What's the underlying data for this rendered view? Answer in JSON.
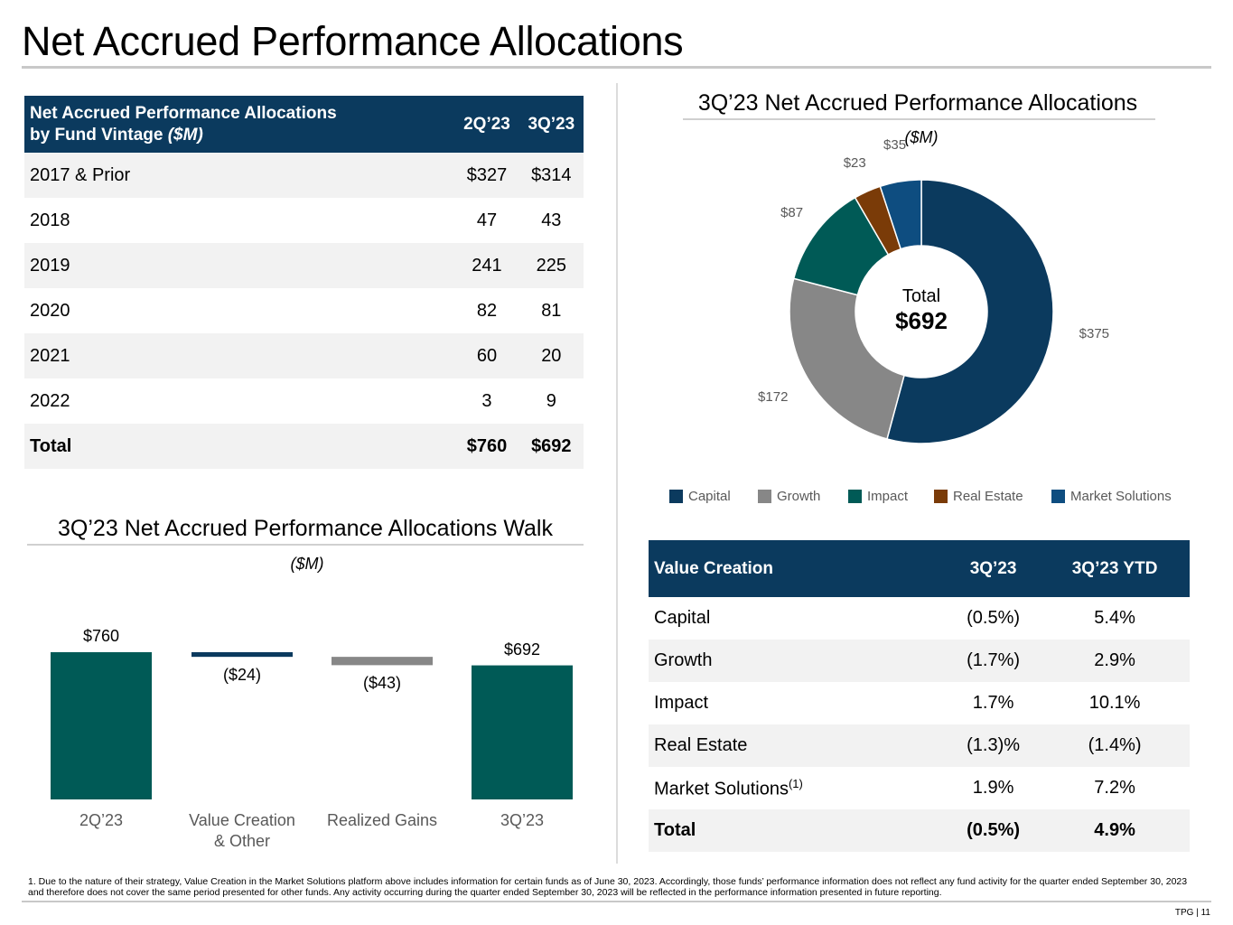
{
  "page": {
    "title": "Net Accrued Performance Allocations",
    "footnote": "1. Due to the nature of their strategy, Value Creation in the Market Solutions platform above includes information for certain funds as of June 30, 2023. Accordingly, those funds’ performance information does not reflect any fund activity for the quarter ended September 30, 2023 and therefore does not cover the same period presented for other funds. Any activity occurring during the quarter ended September 30, 2023 will be reflected in the performance information presented in future reporting.",
    "page_number": "TPG | 11"
  },
  "vintage_table": {
    "header_line1": "Net Accrued Performance Allocations",
    "header_line2": "by Fund Vintage ",
    "header_unit": "($M)",
    "col1": "2Q’23",
    "col2": "3Q’23",
    "rows": [
      {
        "label": "2017 & Prior",
        "q2": "$327",
        "q3": "$314"
      },
      {
        "label": "2018",
        "q2": "47",
        "q3": "43"
      },
      {
        "label": "2019",
        "q2": "241",
        "q3": "225"
      },
      {
        "label": "2020",
        "q2": "82",
        "q3": "81"
      },
      {
        "label": "2021",
        "q2": "60",
        "q3": "20"
      },
      {
        "label": "2022",
        "q2": "3",
        "q3": "9"
      }
    ],
    "total": {
      "label": "Total",
      "q2": "$760",
      "q3": "$692"
    }
  },
  "donut": {
    "title": "3Q’23 Net Accrued Performance Allocations",
    "unit": "($M)",
    "center_label": "Total",
    "center_value": "$692"
  },
  "walk": {
    "title": "3Q’23 Net Accrued Performance Allocations Walk",
    "unit": "($M)"
  },
  "value_creation": {
    "header": "Value Creation",
    "col1": "3Q’23",
    "col2": "3Q’23 YTD",
    "rows": [
      {
        "label": "Capital",
        "sup": "",
        "q3": "(0.5%)",
        "ytd": "5.4%"
      },
      {
        "label": "Growth",
        "sup": "",
        "q3": "(1.7%)",
        "ytd": "2.9%"
      },
      {
        "label": "Impact",
        "sup": "",
        "q3": "1.7%",
        "ytd": "10.1%"
      },
      {
        "label": "Real Estate",
        "sup": "",
        "q3": "(1.3)%",
        "ytd": "(1.4%)"
      },
      {
        "label": "Market Solutions",
        "sup": "(1)",
        "q3": "1.9%",
        "ytd": "7.2%"
      }
    ],
    "total": {
      "label": "Total",
      "q3": "(0.5%)",
      "ytd": "4.9%"
    }
  },
  "chart_data": [
    {
      "type": "pie",
      "title": "3Q’23 Net Accrued Performance Allocations",
      "subtitle": "($M)",
      "categories": [
        "Capital",
        "Growth",
        "Impact",
        "Real Estate",
        "Market Solutions"
      ],
      "values": [
        375,
        172,
        87,
        23,
        35
      ],
      "data_labels": [
        "$375",
        "$172",
        "$87",
        "$23",
        "$35"
      ],
      "colors": [
        "#0b3a5e",
        "#878787",
        "#005a56",
        "#7a3b08",
        "#0e4d80"
      ],
      "legend_position": "bottom",
      "center_text": [
        "Total",
        "$692"
      ]
    },
    {
      "type": "bar",
      "title": "3Q’23 Net Accrued Performance Allocations Walk",
      "subtitle": "($M)",
      "categories": [
        "2Q’23",
        "Value Creation & Other",
        "Realized Gains",
        "3Q’23"
      ],
      "category_lines": [
        [
          "2Q’23"
        ],
        [
          "Value Creation",
          "& Other"
        ],
        [
          "Realized Gains"
        ],
        [
          "3Q’23"
        ]
      ],
      "values": [
        760,
        -24,
        -43,
        692
      ],
      "data_labels": [
        "$760",
        "($24)",
        "($43)",
        "$692"
      ],
      "colors": [
        "#005a56",
        "#0b3a5e",
        "#878787",
        "#005a56"
      ],
      "ylim": [
        0,
        760
      ]
    }
  ]
}
